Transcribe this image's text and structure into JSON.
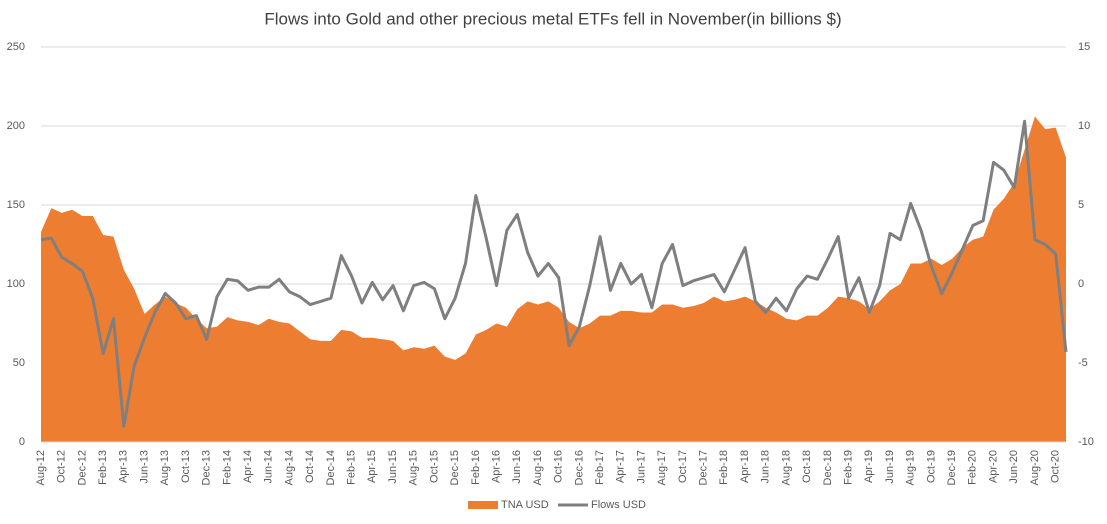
{
  "chart_data": {
    "type": "area-line",
    "title": "Flows into Gold and other precious metal ETFs fell in November(in billions $)",
    "categories": [
      "Aug-12",
      null,
      "Oct-12",
      null,
      "Dec-12",
      null,
      "Feb-13",
      null,
      "Apr-13",
      null,
      "Jun-13",
      null,
      "Aug-13",
      null,
      "Oct-13",
      null,
      "Dec-13",
      null,
      "Feb-14",
      null,
      "Apr-14",
      null,
      "Jun-14",
      null,
      "Aug-14",
      null,
      "Oct-14",
      null,
      "Dec-14",
      null,
      "Feb-15",
      null,
      "Apr-15",
      null,
      "Jun-15",
      null,
      "Aug-15",
      null,
      "Oct-15",
      null,
      "Dec-15",
      null,
      "Feb-16",
      null,
      "Apr-16",
      null,
      "Jun-16",
      null,
      "Aug-16",
      null,
      "Oct-16",
      null,
      "Dec-16",
      null,
      "Feb-17",
      null,
      "Apr-17",
      null,
      "Jun-17",
      null,
      "Aug-17",
      null,
      "Oct-17",
      null,
      "Dec-17",
      null,
      "Feb-18",
      null,
      "Apr-18",
      null,
      "Jun-18",
      null,
      "Aug-18",
      null,
      "Oct-18",
      null,
      "Dec-18",
      null,
      "Feb-19",
      null,
      "Apr-19",
      null,
      "Jun-19",
      null,
      "Aug-19",
      null,
      "Oct-19",
      null,
      "Dec-19",
      null,
      "Feb-20",
      null,
      "Apr-20",
      null,
      "Jun-20",
      null,
      "Aug-20",
      null,
      "Oct-20",
      null
    ],
    "series": [
      {
        "name": "TNA USD",
        "color": "#ED7D31",
        "kind": "area",
        "values": [
          133,
          148,
          145,
          147,
          143,
          143,
          131,
          130,
          109,
          97,
          81,
          87,
          92,
          88,
          85,
          78,
          72,
          73,
          79,
          77,
          76,
          74,
          78,
          76,
          75,
          70,
          65,
          64,
          64,
          71,
          70,
          66,
          66,
          65,
          64,
          58,
          60,
          59,
          61,
          54,
          52,
          56,
          68,
          71,
          75,
          73,
          84,
          89,
          87,
          89,
          85,
          76,
          72,
          75,
          80,
          80,
          83,
          83,
          82,
          82,
          87,
          87,
          85,
          86,
          88,
          92,
          89,
          90,
          92,
          89,
          85,
          82,
          78,
          77,
          80,
          80,
          85,
          92,
          91,
          89,
          84,
          89,
          96,
          100,
          113,
          113,
          116,
          112,
          116,
          123,
          128,
          130,
          147,
          154,
          164,
          185,
          206,
          198,
          199,
          180
        ]
      },
      {
        "name": "Flows USD",
        "color": "#7F7F7F",
        "kind": "line",
        "axis": "y2",
        "values": [
          2.8,
          2.9,
          1.7,
          1.3,
          0.8,
          -0.9,
          -4.4,
          -2.2,
          -9.0,
          -5.2,
          -3.4,
          -1.8,
          -0.6,
          -1.2,
          -2.2,
          -2.0,
          -3.5,
          -0.8,
          0.3,
          0.2,
          -0.4,
          -0.2,
          -0.2,
          0.3,
          -0.5,
          -0.8,
          -1.3,
          -1.1,
          -0.9,
          1.8,
          0.5,
          -1.2,
          0.1,
          -1.0,
          -0.1,
          -1.7,
          -0.1,
          0.1,
          -0.3,
          -2.2,
          -0.9,
          1.3,
          5.6,
          2.9,
          -0.1,
          3.4,
          4.4,
          2.0,
          0.5,
          1.3,
          0.4,
          -3.9,
          -2.7,
          -0.1,
          3.0,
          -0.4,
          1.3,
          0,
          0.6,
          -1.5,
          1.3,
          2.5,
          -0.1,
          0.2,
          0.4,
          0.6,
          -0.5,
          0.9,
          2.3,
          -1.1,
          -1.8,
          -0.9,
          -1.7,
          -0.3,
          0.5,
          0.3,
          1.6,
          3.0,
          -0.9,
          0.4,
          -1.8,
          -0.1,
          3.2,
          2.8,
          5.1,
          3.4,
          1.1,
          -0.6,
          0.7,
          2.2,
          3.7,
          4.0,
          7.7,
          7.2,
          6.1,
          10.3,
          2.8,
          2.5,
          1.9,
          -4.3
        ]
      }
    ],
    "ylim": [
      0,
      250
    ],
    "yticks": [
      0,
      50,
      100,
      150,
      200,
      250
    ],
    "y2lim": [
      -10,
      15
    ],
    "y2ticks": [
      -10,
      -5,
      0,
      5,
      10,
      15
    ],
    "grid": true,
    "legend": "bottom"
  }
}
